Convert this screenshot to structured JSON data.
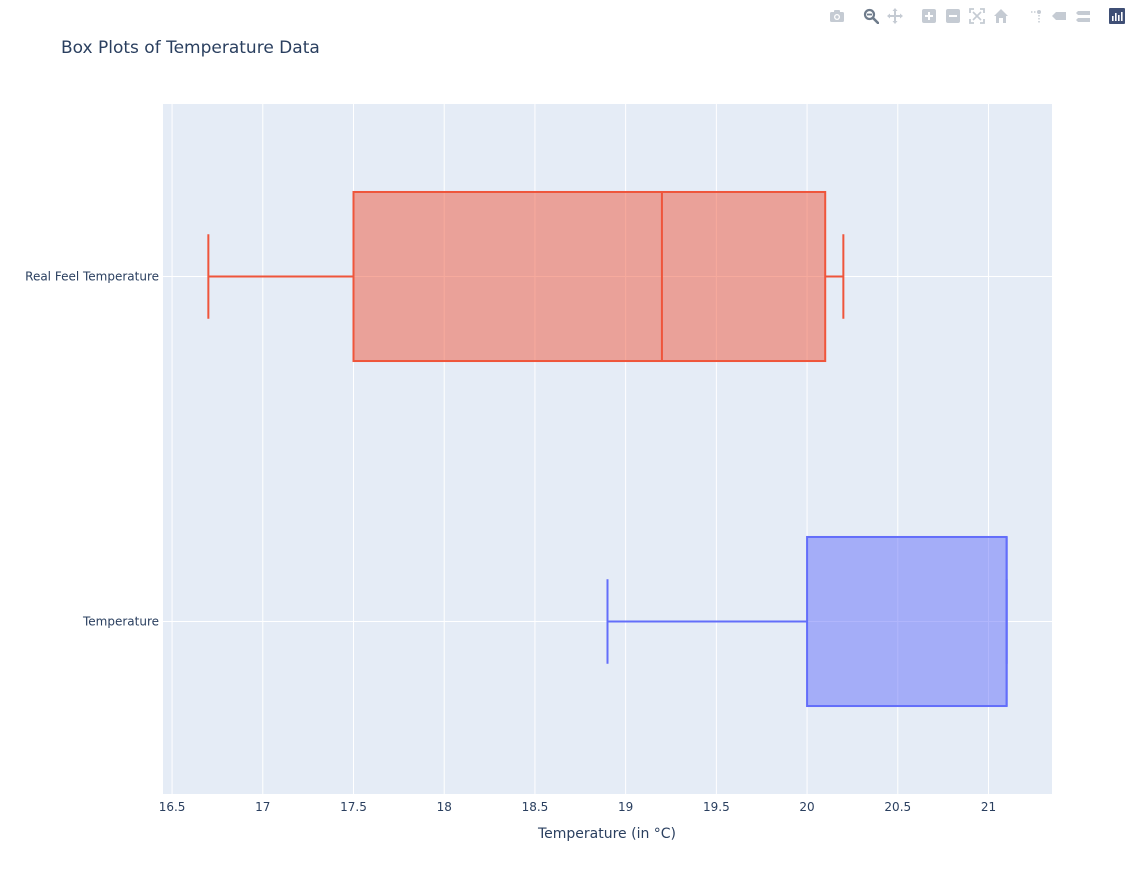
{
  "modebar": {
    "buttons": [
      {
        "name": "camera-icon",
        "title": "Download plot as a png",
        "group": 0
      },
      {
        "name": "zoom-icon",
        "title": "Zoom",
        "group": 1,
        "active": true
      },
      {
        "name": "pan-icon",
        "title": "Pan",
        "group": 1
      },
      {
        "name": "zoom-in-icon",
        "title": "Zoom in",
        "group": 2
      },
      {
        "name": "zoom-out-icon",
        "title": "Zoom out",
        "group": 2
      },
      {
        "name": "autoscale-icon",
        "title": "Autoscale",
        "group": 2
      },
      {
        "name": "home-icon",
        "title": "Reset axes",
        "group": 2
      },
      {
        "name": "spike-lines-icon",
        "title": "Toggle Spike Lines",
        "group": 3
      },
      {
        "name": "hover-closest-icon",
        "title": "Show closest data on hover",
        "group": 3
      },
      {
        "name": "hover-compare-icon",
        "title": "Compare data on hover",
        "group": 3
      },
      {
        "name": "plotly-logo-icon",
        "title": "Produced with Plotly",
        "group": 4
      }
    ],
    "icon_color": "#c5cbd3",
    "active_color": "#6e7b8b",
    "logo_bg": "#3f4f75"
  },
  "chart_data": {
    "type": "box",
    "orientation": "horizontal",
    "title": "Box Plots of Temperature Data",
    "xlabel": "Temperature (in °C)",
    "ylabel": "",
    "xlim": [
      16.45,
      21.35
    ],
    "xticks": [
      16.5,
      17,
      17.5,
      18,
      18.5,
      19,
      19.5,
      20,
      20.5,
      21
    ],
    "xtick_labels": [
      "16.5",
      "17",
      "17.5",
      "18",
      "18.5",
      "19",
      "19.5",
      "20",
      "20.5",
      "21"
    ],
    "categories": [
      "Temperature",
      "Real Feel Temperature"
    ],
    "grid": true,
    "series": [
      {
        "category": "Real Feel Temperature",
        "min": 16.7,
        "q1": 17.5,
        "median": 19.2,
        "q3": 20.1,
        "max": 20.2,
        "color": "#ef553b",
        "fill": "rgba(239,85,59,0.5)"
      },
      {
        "category": "Temperature",
        "min": 18.9,
        "q1": 20.0,
        "median": 21.1,
        "q3": 21.1,
        "max": 21.1,
        "color": "#636efa",
        "fill": "rgba(99,110,250,0.5)"
      }
    ],
    "colors": {
      "plot_bg": "#e5ecf6",
      "grid": "#ffffff",
      "text": "#2a3f5f"
    }
  }
}
